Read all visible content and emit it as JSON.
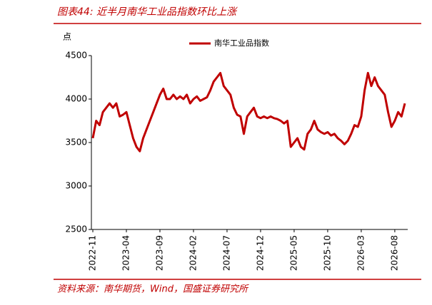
{
  "chart_data": {
    "type": "line",
    "title": "图表44:  近半月南华工业品指数环比上涨",
    "y_label": "点",
    "source": "资料来源：南华期货，Wind，国盛证券研究所",
    "categories": [
      "2022-11",
      null,
      null,
      null,
      null,
      null,
      null,
      null,
      null,
      null,
      "2023-04",
      null,
      null,
      null,
      null,
      null,
      null,
      null,
      null,
      null,
      "2023-09",
      null,
      null,
      null,
      null,
      null,
      null,
      null,
      null,
      null,
      "2024-02",
      null,
      null,
      null,
      null,
      null,
      null,
      null,
      null,
      null,
      "2024-07",
      null,
      null,
      null,
      null,
      null,
      null,
      null,
      null,
      null,
      "2024-12",
      null,
      null,
      null,
      null,
      null,
      null,
      null,
      null,
      null,
      "2025-05",
      null,
      null,
      null,
      null,
      null,
      null,
      null,
      null,
      null,
      "2025-10",
      null,
      null,
      null,
      null,
      null,
      null,
      null,
      null,
      null,
      "2026-03",
      null,
      null,
      null,
      null,
      null,
      null,
      null,
      null,
      null,
      "2026-08",
      null,
      null,
      null
    ],
    "series": [
      {
        "name": "南华工业品指数",
        "color": "#c00000",
        "values": [
          3550,
          3750,
          3700,
          3850,
          3900,
          3950,
          3900,
          3950,
          3800,
          3820,
          3850,
          3700,
          3550,
          3450,
          3400,
          3550,
          3650,
          3750,
          3850,
          3950,
          4050,
          4120,
          4000,
          4000,
          4050,
          4000,
          4030,
          4000,
          4050,
          3950,
          4000,
          4030,
          3980,
          4000,
          4020,
          4100,
          4200,
          4250,
          4300,
          4150,
          4100,
          4050,
          3900,
          3820,
          3800,
          3600,
          3800,
          3850,
          3900,
          3800,
          3780,
          3800,
          3780,
          3800,
          3780,
          3770,
          3750,
          3720,
          3750,
          3450,
          3500,
          3550,
          3450,
          3420,
          3600,
          3650,
          3750,
          3650,
          3620,
          3600,
          3620,
          3580,
          3600,
          3550,
          3520,
          3480,
          3520,
          3600,
          3700,
          3680,
          3800,
          4100,
          4300,
          4150,
          4250,
          4150,
          4100,
          4050,
          3850,
          3680,
          3750,
          3850,
          3800,
          3950
        ]
      }
    ],
    "ylim": [
      2500,
      4500
    ],
    "yticks": [
      2500,
      3000,
      3500,
      4000,
      4500
    ],
    "legend": "top"
  }
}
